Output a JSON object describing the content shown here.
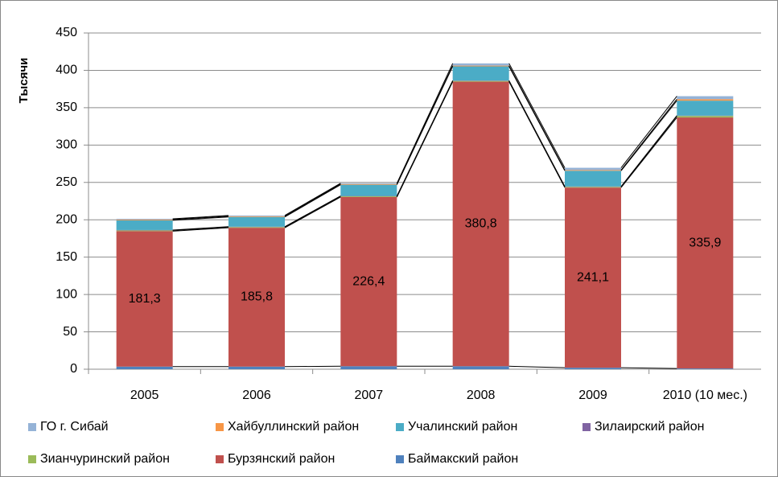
{
  "chart_data": {
    "type": "stacked_bar",
    "y_label": "Тысячи",
    "categories": [
      "2005",
      "2006",
      "2007",
      "2008",
      "2009",
      "2010 (10 мес.)"
    ],
    "series": [
      {
        "name": "Баймакский район",
        "color": "#4f81bd",
        "values": [
          3.5,
          3.5,
          4,
          4,
          2,
          1
        ]
      },
      {
        "name": "Бурзянский район",
        "color": "#c0504d",
        "values": [
          181.3,
          185.8,
          226.4,
          380.8,
          241.1,
          335.9
        ],
        "value_labels": [
          "181,3",
          "185,8",
          "226,4",
          "380,8",
          "241,1",
          "335,9"
        ]
      },
      {
        "name": "Зианчуринский район",
        "color": "#9bbb59",
        "values": [
          1,
          1,
          1,
          1,
          1,
          2
        ]
      },
      {
        "name": "Зилаирский район",
        "color": "#8064a2",
        "values": [
          0.5,
          0.5,
          0.5,
          0.5,
          0.5,
          0.5
        ]
      },
      {
        "name": "Учалинский район",
        "color": "#4bacc6",
        "values": [
          13,
          13,
          15,
          19,
          21,
          20
        ]
      },
      {
        "name": "Хайбуллинский район",
        "color": "#f79646",
        "values": [
          1,
          1,
          1,
          1,
          1,
          2
        ]
      },
      {
        "name": "ГО г. Сибай",
        "color": "#95b3d7",
        "values": [
          1,
          1,
          1,
          3,
          3,
          4
        ]
      }
    ],
    "ylim": [
      0,
      450
    ],
    "yticks": [
      0,
      50,
      100,
      150,
      200,
      250,
      300,
      350,
      400,
      450
    ],
    "grid": true,
    "series_lines": true
  }
}
